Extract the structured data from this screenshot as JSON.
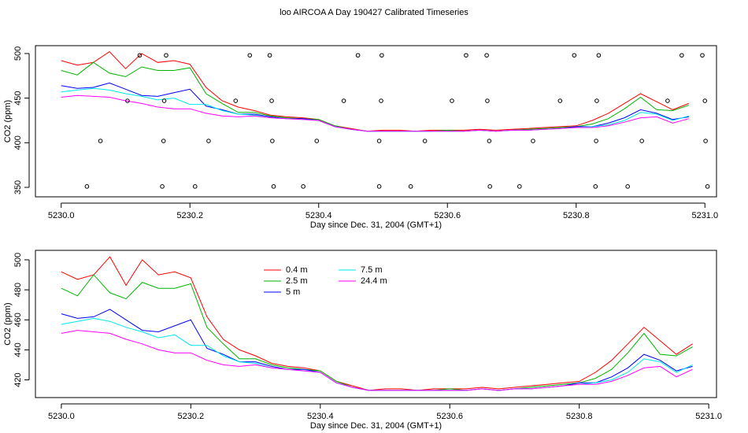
{
  "chart_data": [
    {
      "type": "line",
      "title": "loo AIRCOA A  Day 190427  Calibrated Timeseries",
      "xlabel": "Day since Dec. 31, 2004 (GMT+1)",
      "ylabel": "CO2 (ppm)",
      "xlim": [
        5229.96,
        5231.018
      ],
      "ylim": [
        339.4,
        508.8
      ],
      "xticks": [
        {
          "value": 5230,
          "label": "5230.0"
        },
        5230.2,
        5230.4,
        5230.6,
        5230.8,
        {
          "value": 5231,
          "label": "5231.0"
        }
      ],
      "yticks": [
        350,
        400,
        450,
        500
      ],
      "x": [
        5230,
        5230.025,
        5230.05,
        5230.075,
        5230.1,
        5230.125,
        5230.15,
        5230.175,
        5230.2,
        5230.225,
        5230.25,
        5230.275,
        5230.3,
        5230.325,
        5230.35,
        5230.375,
        5230.4,
        5230.425,
        5230.45,
        5230.475,
        5230.5,
        5230.525,
        5230.55,
        5230.575,
        5230.6,
        5230.625,
        5230.65,
        5230.675,
        5230.7,
        5230.725,
        5230.75,
        5230.775,
        5230.8,
        5230.825,
        5230.85,
        5230.875,
        5230.9,
        5230.925,
        5230.95,
        5230.975
      ],
      "series": [
        {
          "color": "#ff0000",
          "values": [
            492,
            487,
            490,
            502,
            483,
            500,
            490,
            492,
            488,
            462,
            447,
            440,
            436,
            431,
            429,
            428,
            426,
            419,
            416,
            413,
            414,
            414,
            413,
            414,
            414,
            414,
            415,
            414,
            415,
            416,
            417,
            418,
            419,
            425,
            433,
            444,
            455,
            446,
            437,
            444
          ]
        },
        {
          "color": "#00b400",
          "values": [
            481,
            476,
            490,
            478,
            474,
            485,
            481,
            481,
            484,
            455,
            444,
            434,
            434,
            430,
            428,
            427,
            426,
            419,
            415,
            413,
            413,
            413,
            413,
            413,
            414,
            413,
            414,
            413,
            414,
            415,
            416,
            417,
            418,
            421,
            427,
            438,
            451,
            437,
            436,
            442
          ]
        },
        {
          "color": "#0000ff",
          "values": [
            464,
            461,
            462,
            467,
            460,
            453,
            452,
            456,
            460,
            441,
            437,
            432,
            432,
            429,
            427,
            427,
            425,
            418,
            415,
            413,
            413,
            413,
            413,
            413,
            413,
            413,
            414,
            413,
            414,
            414,
            415,
            416,
            418,
            418,
            422,
            428,
            437,
            433,
            426,
            429
          ]
        },
        {
          "color": "#00e8e8",
          "values": [
            457,
            459,
            461,
            459,
            455,
            452,
            448,
            450,
            443,
            443,
            436,
            432,
            431,
            428,
            427,
            426,
            425,
            418,
            415,
            413,
            413,
            413,
            413,
            413,
            413,
            413,
            414,
            413,
            414,
            414,
            415,
            416,
            417,
            418,
            420,
            425,
            434,
            432,
            425,
            430
          ]
        },
        {
          "color": "#ff00ff",
          "values": [
            451,
            453,
            452,
            451,
            447,
            444,
            440,
            438,
            438,
            433,
            430,
            429,
            430,
            428,
            427,
            426,
            425,
            418,
            415,
            413,
            413,
            413,
            413,
            413,
            413,
            413,
            414,
            413,
            414,
            414,
            415,
            416,
            417,
            417,
            419,
            423,
            428,
            429,
            422,
            427
          ]
        }
      ],
      "points": {
        "x": [
          5230.122,
          5230.163,
          5230.293,
          5230.324,
          5230.461,
          5230.498,
          5230.629,
          5230.661,
          5230.797,
          5230.835,
          5230.964,
          5230.996,
          5230.103,
          5230.16,
          5230.271,
          5230.327,
          5230.439,
          5230.497,
          5230.607,
          5230.662,
          5230.775,
          5230.832,
          5230.942,
          5231.0,
          5230.061,
          5230.159,
          5230.229,
          5230.328,
          5230.397,
          5230.494,
          5230.565,
          5230.665,
          5230.733,
          5230.831,
          5230.902,
          5231.001,
          5230.04,
          5230.157,
          5230.208,
          5230.33,
          5230.376,
          5230.494,
          5230.543,
          5230.666,
          5230.712,
          5230.83,
          5230.88,
          5231.004
        ],
        "y": [
          498,
          498,
          498,
          498,
          498,
          498,
          498,
          498,
          498,
          498,
          498,
          498,
          447,
          447,
          447,
          447,
          447,
          447,
          447,
          447,
          447,
          447,
          447,
          447,
          402,
          402,
          402,
          402,
          402,
          402,
          402,
          402,
          402,
          402,
          402,
          402,
          351,
          351,
          351,
          351,
          351,
          351,
          351,
          351,
          351,
          351,
          351,
          351
        ]
      }
    },
    {
      "type": "line",
      "xlabel": "Day since Dec. 31, 2004 (GMT+1)",
      "ylabel": "CO2 (ppm)",
      "xlim": [
        5229.96,
        5231.012
      ],
      "ylim": [
        408.2,
        506.3
      ],
      "xticks": [
        {
          "value": 5230,
          "label": "5230.0"
        },
        5230.2,
        5230.4,
        5230.6,
        5230.8,
        {
          "value": 5231,
          "label": "5231.0"
        }
      ],
      "yticks": [
        420,
        440,
        460,
        480,
        500
      ],
      "x": [
        5230,
        5230.025,
        5230.05,
        5230.075,
        5230.1,
        5230.125,
        5230.15,
        5230.175,
        5230.2,
        5230.225,
        5230.25,
        5230.275,
        5230.3,
        5230.325,
        5230.35,
        5230.375,
        5230.4,
        5230.425,
        5230.45,
        5230.475,
        5230.5,
        5230.525,
        5230.55,
        5230.575,
        5230.6,
        5230.625,
        5230.65,
        5230.675,
        5230.7,
        5230.725,
        5230.75,
        5230.775,
        5230.8,
        5230.825,
        5230.85,
        5230.875,
        5230.9,
        5230.925,
        5230.95,
        5230.975
      ],
      "series": [
        {
          "name": "0.4 m",
          "color": "#ff0000",
          "values": [
            492,
            487,
            490,
            502,
            483,
            500,
            490,
            492,
            488,
            462,
            447,
            440,
            436,
            431,
            429,
            428,
            426,
            419,
            416,
            413,
            414,
            414,
            413,
            414,
            414,
            414,
            415,
            414,
            415,
            416,
            417,
            418,
            419,
            425,
            433,
            444,
            455,
            446,
            437,
            444
          ]
        },
        {
          "name": "2.5 m",
          "color": "#00b400",
          "values": [
            481,
            476,
            490,
            478,
            474,
            485,
            481,
            481,
            484,
            455,
            444,
            434,
            434,
            430,
            428,
            427,
            426,
            419,
            415,
            413,
            413,
            413,
            413,
            413,
            414,
            413,
            414,
            413,
            414,
            415,
            416,
            417,
            418,
            421,
            427,
            438,
            451,
            437,
            436,
            442
          ]
        },
        {
          "name": "5 m",
          "color": "#0000ff",
          "values": [
            464,
            461,
            462,
            467,
            460,
            453,
            452,
            456,
            460,
            441,
            437,
            432,
            432,
            429,
            427,
            427,
            425,
            418,
            415,
            413,
            413,
            413,
            413,
            413,
            413,
            413,
            414,
            413,
            414,
            414,
            415,
            416,
            418,
            418,
            422,
            428,
            437,
            433,
            426,
            429
          ]
        },
        {
          "name": "7.5 m",
          "color": "#00e8e8",
          "values": [
            457,
            459,
            461,
            459,
            455,
            452,
            448,
            450,
            443,
            443,
            436,
            432,
            431,
            428,
            427,
            426,
            425,
            418,
            415,
            413,
            413,
            413,
            413,
            413,
            413,
            413,
            414,
            413,
            414,
            414,
            415,
            416,
            417,
            418,
            420,
            425,
            434,
            432,
            425,
            430
          ]
        },
        {
          "name": "24.4 m",
          "color": "#ff00ff",
          "values": [
            451,
            453,
            452,
            451,
            447,
            444,
            440,
            438,
            438,
            433,
            430,
            429,
            430,
            428,
            427,
            426,
            425,
            418,
            415,
            413,
            413,
            413,
            413,
            413,
            413,
            413,
            414,
            413,
            414,
            414,
            415,
            416,
            417,
            417,
            419,
            423,
            428,
            429,
            422,
            427
          ]
        }
      ]
    }
  ]
}
